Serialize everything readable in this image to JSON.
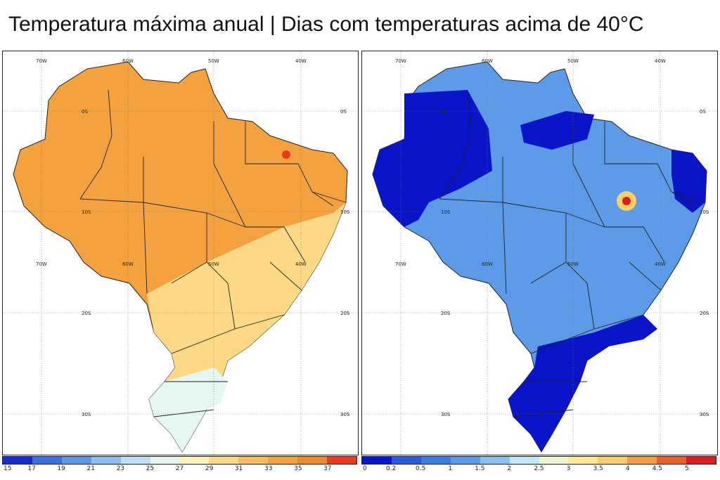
{
  "title": "Temperatura máxima anual | Dias com temperaturas acima de 40°C",
  "grid_labels": {
    "lon": [
      "70W",
      "60W",
      "50W",
      "40W"
    ],
    "lat": [
      "0S",
      "10S",
      "20S",
      "30S"
    ]
  },
  "maps": [
    {
      "variable": "Temperatura máxima anual",
      "colorbar": {
        "ticks": [
          "15",
          "17",
          "19",
          "21",
          "23",
          "25",
          "27",
          "29",
          "31",
          "33",
          "35",
          "37"
        ],
        "colors": [
          "#1a2bd0",
          "#3a70dc",
          "#5f96e6",
          "#8fbdf0",
          "#bde0f6",
          "#e6f6f2",
          "#fdf3bd",
          "#fbd987",
          "#f6bd5e",
          "#f3a23f",
          "#ee8a2d",
          "#e83a20"
        ],
        "fill_main": "#f3a23f",
        "fill_south": "#fbd987"
      }
    },
    {
      "variable": "Dias com temperaturas acima de 40°C",
      "colorbar": {
        "ticks": [
          "0",
          "0.2",
          "0.5",
          "1",
          "1.5",
          "2",
          "2.5",
          "3",
          "3.5",
          "4",
          "4.5",
          "5"
        ],
        "colors": [
          "#0a14c8",
          "#2a5ad8",
          "#3b7ee2",
          "#5d9be8",
          "#8fc0f0",
          "#c7e6f6",
          "#f0f4d0",
          "#fcec9a",
          "#f9cf6a",
          "#f2a040",
          "#e8602a",
          "#d81e1e"
        ],
        "fill_main": "#5d9be8",
        "fill_low": "#0a14c8",
        "hotspot": "#d81e1e"
      }
    }
  ]
}
